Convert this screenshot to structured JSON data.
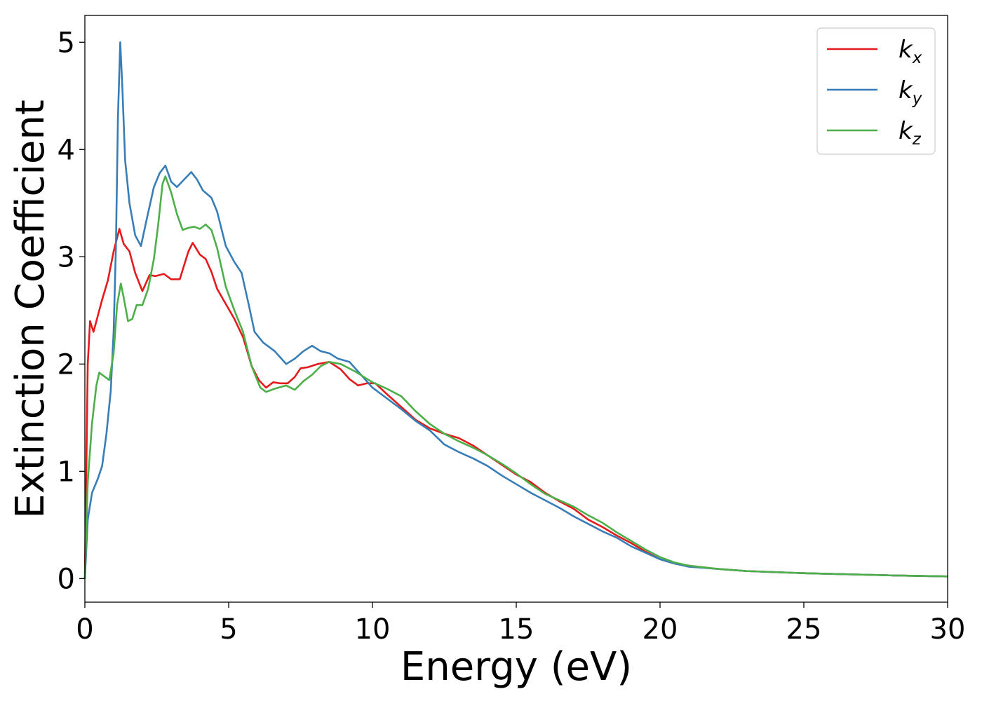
{
  "chart_data": {
    "type": "line",
    "xlabel": "Energy (eV)",
    "ylabel": "Extinction Coefficient",
    "xlim": [
      0,
      30
    ],
    "ylim": [
      -0.22,
      5.25
    ],
    "xticks": [
      "0",
      "5",
      "10",
      "15",
      "20",
      "25",
      "30"
    ],
    "yticks": [
      "0",
      "1",
      "2",
      "3",
      "4",
      "5"
    ],
    "grid": false,
    "legend_position": "top-right",
    "series": [
      {
        "name": "k",
        "subscript": "x",
        "color": "#e41a1c",
        "points": [
          [
            0,
            0
          ],
          [
            0.05,
            1.0
          ],
          [
            0.1,
            2.0
          ],
          [
            0.18,
            2.4
          ],
          [
            0.3,
            2.3
          ],
          [
            0.45,
            2.45
          ],
          [
            0.6,
            2.6
          ],
          [
            0.8,
            2.78
          ],
          [
            1.0,
            3.05
          ],
          [
            1.2,
            3.26
          ],
          [
            1.35,
            3.12
          ],
          [
            1.55,
            3.05
          ],
          [
            1.75,
            2.85
          ],
          [
            2.0,
            2.68
          ],
          [
            2.25,
            2.83
          ],
          [
            2.45,
            2.82
          ],
          [
            2.75,
            2.84
          ],
          [
            3.0,
            2.79
          ],
          [
            3.3,
            2.79
          ],
          [
            3.6,
            3.05
          ],
          [
            3.75,
            3.13
          ],
          [
            4.0,
            3.02
          ],
          [
            4.2,
            2.98
          ],
          [
            4.4,
            2.86
          ],
          [
            4.6,
            2.7
          ],
          [
            4.9,
            2.56
          ],
          [
            5.2,
            2.42
          ],
          [
            5.5,
            2.25
          ],
          [
            5.8,
            1.98
          ],
          [
            6.05,
            1.85
          ],
          [
            6.3,
            1.78
          ],
          [
            6.55,
            1.83
          ],
          [
            6.8,
            1.82
          ],
          [
            7.05,
            1.82
          ],
          [
            7.3,
            1.88
          ],
          [
            7.5,
            1.96
          ],
          [
            7.75,
            1.97
          ],
          [
            8.1,
            2.0
          ],
          [
            8.5,
            2.02
          ],
          [
            8.9,
            1.95
          ],
          [
            9.2,
            1.86
          ],
          [
            9.5,
            1.8
          ],
          [
            9.8,
            1.82
          ],
          [
            10.1,
            1.82
          ],
          [
            10.5,
            1.72
          ],
          [
            11.0,
            1.6
          ],
          [
            11.5,
            1.48
          ],
          [
            12.0,
            1.4
          ],
          [
            12.5,
            1.35
          ],
          [
            13.0,
            1.31
          ],
          [
            13.5,
            1.24
          ],
          [
            14.0,
            1.15
          ],
          [
            14.5,
            1.06
          ],
          [
            15.0,
            0.97
          ],
          [
            15.5,
            0.9
          ],
          [
            16.0,
            0.8
          ],
          [
            16.5,
            0.72
          ],
          [
            17.0,
            0.65
          ],
          [
            17.5,
            0.55
          ],
          [
            18.0,
            0.48
          ],
          [
            18.5,
            0.4
          ],
          [
            19.0,
            0.33
          ],
          [
            19.5,
            0.25
          ],
          [
            20.0,
            0.18
          ],
          [
            20.5,
            0.14
          ],
          [
            21.0,
            0.12
          ],
          [
            22.0,
            0.09
          ],
          [
            23.0,
            0.07
          ],
          [
            25.0,
            0.05
          ],
          [
            28.0,
            0.03
          ],
          [
            30.0,
            0.02
          ]
        ]
      },
      {
        "name": "k",
        "subscript": "y",
        "color": "#377eb8",
        "points": [
          [
            0,
            0
          ],
          [
            0.1,
            0.55
          ],
          [
            0.25,
            0.8
          ],
          [
            0.45,
            0.93
          ],
          [
            0.6,
            1.05
          ],
          [
            0.75,
            1.35
          ],
          [
            0.9,
            1.75
          ],
          [
            1.0,
            2.3
          ],
          [
            1.08,
            3.1
          ],
          [
            1.15,
            4.3
          ],
          [
            1.23,
            5.0
          ],
          [
            1.3,
            4.6
          ],
          [
            1.4,
            3.9
          ],
          [
            1.55,
            3.5
          ],
          [
            1.75,
            3.2
          ],
          [
            1.95,
            3.1
          ],
          [
            2.15,
            3.35
          ],
          [
            2.4,
            3.65
          ],
          [
            2.6,
            3.78
          ],
          [
            2.8,
            3.85
          ],
          [
            3.0,
            3.7
          ],
          [
            3.2,
            3.65
          ],
          [
            3.45,
            3.72
          ],
          [
            3.7,
            3.79
          ],
          [
            3.9,
            3.72
          ],
          [
            4.1,
            3.62
          ],
          [
            4.4,
            3.55
          ],
          [
            4.6,
            3.42
          ],
          [
            4.9,
            3.1
          ],
          [
            5.2,
            2.95
          ],
          [
            5.45,
            2.85
          ],
          [
            5.7,
            2.55
          ],
          [
            5.9,
            2.3
          ],
          [
            6.2,
            2.2
          ],
          [
            6.6,
            2.12
          ],
          [
            7.0,
            2.0
          ],
          [
            7.3,
            2.05
          ],
          [
            7.6,
            2.12
          ],
          [
            7.9,
            2.17
          ],
          [
            8.2,
            2.12
          ],
          [
            8.5,
            2.1
          ],
          [
            8.8,
            2.05
          ],
          [
            9.2,
            2.02
          ],
          [
            9.6,
            1.9
          ],
          [
            10.0,
            1.78
          ],
          [
            10.5,
            1.68
          ],
          [
            11.0,
            1.58
          ],
          [
            11.5,
            1.47
          ],
          [
            12.0,
            1.38
          ],
          [
            12.5,
            1.25
          ],
          [
            13.0,
            1.18
          ],
          [
            13.5,
            1.12
          ],
          [
            14.0,
            1.05
          ],
          [
            14.5,
            0.96
          ],
          [
            15.0,
            0.88
          ],
          [
            15.5,
            0.8
          ],
          [
            16.0,
            0.73
          ],
          [
            16.5,
            0.66
          ],
          [
            17.0,
            0.58
          ],
          [
            17.5,
            0.51
          ],
          [
            18.0,
            0.44
          ],
          [
            18.5,
            0.38
          ],
          [
            19.0,
            0.3
          ],
          [
            19.5,
            0.24
          ],
          [
            20.0,
            0.18
          ],
          [
            20.5,
            0.14
          ],
          [
            21.0,
            0.11
          ],
          [
            22.0,
            0.09
          ],
          [
            23.0,
            0.07
          ],
          [
            25.0,
            0.05
          ],
          [
            28.0,
            0.03
          ],
          [
            30.0,
            0.02
          ]
        ]
      },
      {
        "name": "k",
        "subscript": "z",
        "color": "#4daf4a",
        "points": [
          [
            0,
            0
          ],
          [
            0.1,
            0.9
          ],
          [
            0.25,
            1.45
          ],
          [
            0.4,
            1.8
          ],
          [
            0.5,
            1.92
          ],
          [
            0.7,
            1.88
          ],
          [
            0.85,
            1.85
          ],
          [
            1.0,
            2.1
          ],
          [
            1.12,
            2.55
          ],
          [
            1.25,
            2.75
          ],
          [
            1.35,
            2.62
          ],
          [
            1.5,
            2.4
          ],
          [
            1.65,
            2.42
          ],
          [
            1.8,
            2.55
          ],
          [
            2.0,
            2.55
          ],
          [
            2.2,
            2.7
          ],
          [
            2.4,
            2.98
          ],
          [
            2.55,
            3.3
          ],
          [
            2.7,
            3.68
          ],
          [
            2.8,
            3.75
          ],
          [
            3.0,
            3.6
          ],
          [
            3.2,
            3.4
          ],
          [
            3.4,
            3.25
          ],
          [
            3.6,
            3.27
          ],
          [
            3.8,
            3.28
          ],
          [
            4.0,
            3.26
          ],
          [
            4.2,
            3.3
          ],
          [
            4.4,
            3.25
          ],
          [
            4.6,
            3.08
          ],
          [
            4.9,
            2.72
          ],
          [
            5.2,
            2.5
          ],
          [
            5.5,
            2.3
          ],
          [
            5.8,
            1.98
          ],
          [
            6.1,
            1.78
          ],
          [
            6.3,
            1.74
          ],
          [
            6.6,
            1.77
          ],
          [
            7.0,
            1.8
          ],
          [
            7.3,
            1.76
          ],
          [
            7.6,
            1.84
          ],
          [
            7.9,
            1.9
          ],
          [
            8.2,
            1.98
          ],
          [
            8.5,
            2.02
          ],
          [
            8.9,
            2.0
          ],
          [
            9.4,
            1.93
          ],
          [
            10.0,
            1.83
          ],
          [
            10.5,
            1.77
          ],
          [
            11.0,
            1.7
          ],
          [
            11.5,
            1.56
          ],
          [
            12.0,
            1.44
          ],
          [
            12.5,
            1.35
          ],
          [
            13.0,
            1.28
          ],
          [
            13.5,
            1.22
          ],
          [
            14.0,
            1.15
          ],
          [
            14.5,
            1.07
          ],
          [
            15.0,
            0.98
          ],
          [
            15.5,
            0.88
          ],
          [
            16.0,
            0.79
          ],
          [
            16.5,
            0.73
          ],
          [
            17.0,
            0.67
          ],
          [
            17.5,
            0.59
          ],
          [
            18.0,
            0.52
          ],
          [
            18.5,
            0.43
          ],
          [
            19.0,
            0.35
          ],
          [
            19.5,
            0.27
          ],
          [
            20.0,
            0.2
          ],
          [
            20.5,
            0.15
          ],
          [
            21.0,
            0.12
          ],
          [
            22.0,
            0.09
          ],
          [
            23.0,
            0.07
          ],
          [
            25.0,
            0.05
          ],
          [
            28.0,
            0.03
          ],
          [
            30.0,
            0.02
          ]
        ]
      }
    ]
  }
}
